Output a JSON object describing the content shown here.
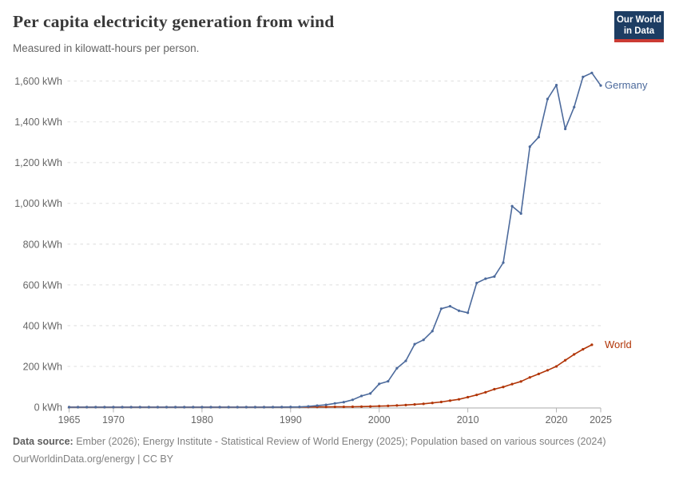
{
  "header": {
    "title": "Per capita electricity generation from wind",
    "subtitle": "Measured in kilowatt-hours per person.",
    "logo": {
      "line1": "Our World",
      "line2": "in Data",
      "bg": "#1d3d63",
      "accent": "#cb3b34"
    }
  },
  "chart_data": {
    "type": "line",
    "title": "Per capita electricity generation from wind",
    "unit": "kWh",
    "x": [
      1965,
      1966,
      1967,
      1968,
      1969,
      1970,
      1971,
      1972,
      1973,
      1974,
      1975,
      1976,
      1977,
      1978,
      1979,
      1980,
      1981,
      1982,
      1983,
      1984,
      1985,
      1986,
      1987,
      1988,
      1989,
      1990,
      1991,
      1992,
      1993,
      1994,
      1995,
      1996,
      1997,
      1998,
      1999,
      2000,
      2001,
      2002,
      2003,
      2004,
      2005,
      2006,
      2007,
      2008,
      2009,
      2010,
      2011,
      2012,
      2013,
      2014,
      2015,
      2016,
      2017,
      2018,
      2019,
      2020,
      2021,
      2022,
      2023,
      2024,
      2025
    ],
    "series": [
      {
        "name": "World",
        "color": "#B13507",
        "values": [
          0,
          0,
          0,
          0,
          0,
          0,
          0,
          0,
          0,
          0,
          0,
          0,
          0,
          0,
          0,
          0,
          0,
          0,
          0,
          0,
          0,
          0,
          0,
          0,
          0,
          0.7,
          0.8,
          0.9,
          1,
          1.2,
          1.4,
          1.7,
          2.1,
          2.7,
          3.6,
          5.2,
          6.4,
          8.3,
          10.4,
          13.2,
          16.4,
          20.6,
          25.6,
          32,
          38.5,
          49,
          60,
          73,
          88,
          99,
          113,
          126,
          146,
          163,
          181,
          200,
          230,
          259,
          284,
          306,
          null
        ]
      },
      {
        "name": "Germany",
        "color": "#4C6A9C",
        "values": [
          0,
          0,
          0,
          0,
          0,
          0,
          0,
          0,
          0,
          0,
          0,
          0,
          0,
          0,
          0,
          0,
          0,
          0,
          0,
          0,
          0,
          0,
          0,
          0.2,
          0.4,
          0.9,
          1.3,
          3.4,
          7.4,
          11.5,
          18.4,
          24.6,
          36,
          55,
          67,
          114,
          127,
          191,
          227,
          309,
          330,
          373,
          483,
          495,
          473,
          463,
          609,
          630,
          641,
          709,
          986,
          950,
          1278,
          1325,
          1512,
          1580,
          1365,
          1472,
          1620,
          1640,
          1578
        ]
      }
    ],
    "y_ticks": [
      0,
      200,
      400,
      600,
      800,
      1000,
      1200,
      1400,
      1600
    ],
    "x_ticks": [
      1965,
      1970,
      1980,
      1990,
      2000,
      2010,
      2020,
      2025
    ],
    "ylim": [
      0,
      1600
    ],
    "xlim": [
      1965,
      2025
    ],
    "grid": "horizontal-dashed",
    "legend_position": "end-of-line labels",
    "styles": {
      "gridline_color": "#e7e7e7",
      "axis_color": "#a9a9a9",
      "tick_color": "#b3b3b3",
      "tick_label_color": "#666666"
    }
  },
  "footer": {
    "source_label": "Data source:",
    "source_text": " Ember (2026); Energy Institute - Statistical Review of World Energy (2025); Population based on various sources (2024)",
    "link_line": "OurWorldinData.org/energy | CC BY"
  }
}
